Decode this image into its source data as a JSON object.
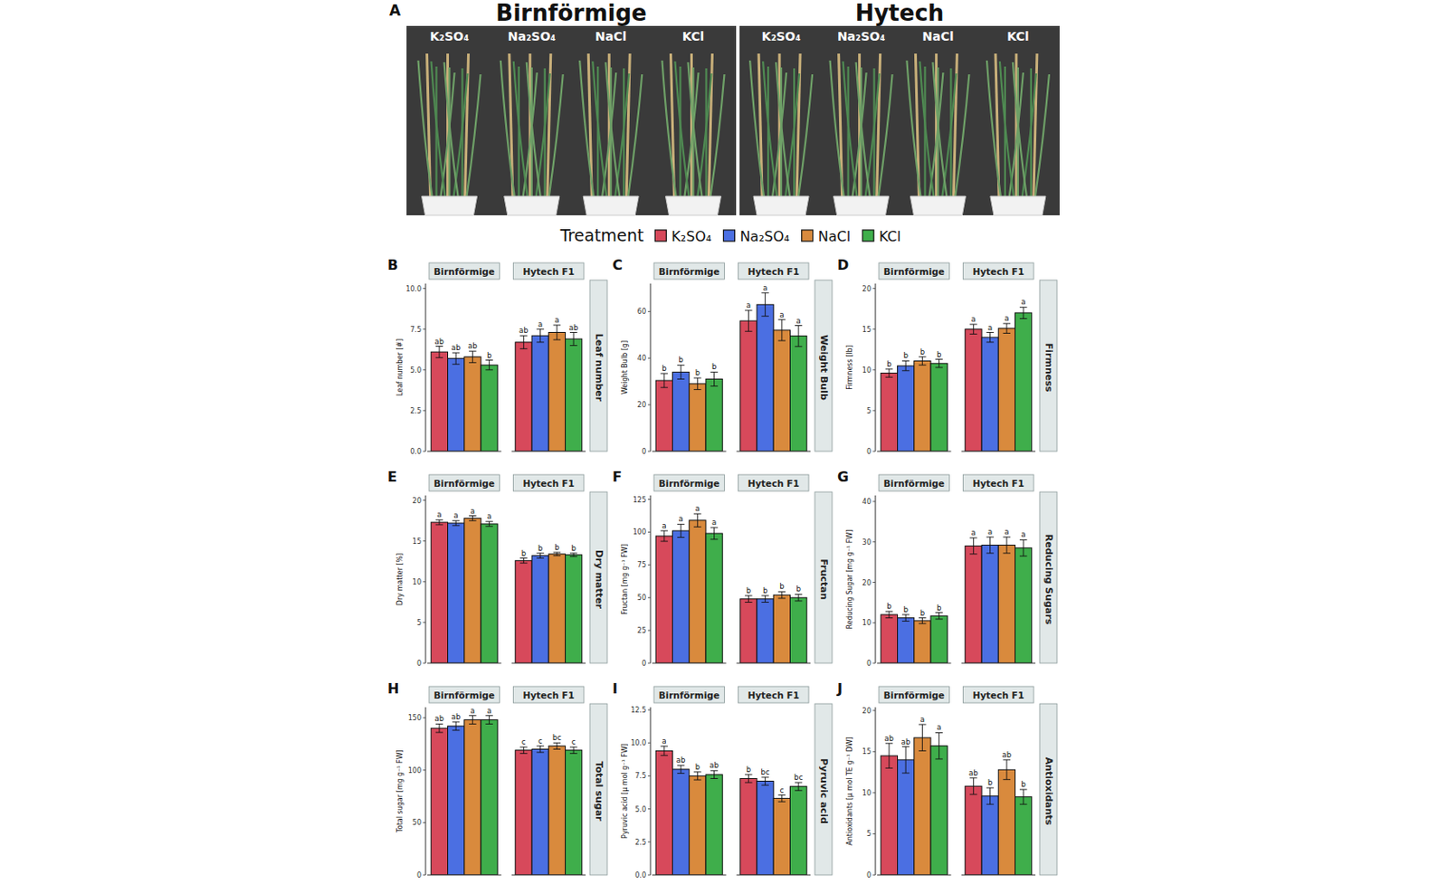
{
  "photo": {
    "label": "A",
    "groups": [
      {
        "title": "Birnförmige",
        "labels": [
          "K₂SO₄",
          "Na₂SO₄",
          "NaCl",
          "KCl"
        ]
      },
      {
        "title": "Hytech",
        "labels": [
          "K₂SO₄",
          "Na₂SO₄",
          "NaCl",
          "KCl"
        ]
      }
    ]
  },
  "treatment_legend": {
    "title": "Treatment",
    "entries": [
      {
        "name": "K₂SO₄",
        "color": "#d7495b"
      },
      {
        "name": "Na₂SO₄",
        "color": "#4b6fe2"
      },
      {
        "name": "NaCl",
        "color": "#d98a3d"
      },
      {
        "name": "KCl",
        "color": "#3fae4b"
      }
    ]
  },
  "chart_data": [
    {
      "type": "bar",
      "panel": "B",
      "title": "Leaf number",
      "y_label": "Leaf number [#]",
      "grid": false,
      "categories": [
        "Birnförmige",
        "Hytech F1"
      ],
      "ylim": [
        0,
        10.3
      ],
      "yticks": [
        {
          "value": 0,
          "label": "0.0"
        },
        {
          "value": 2.5,
          "label": "2.5"
        },
        {
          "value": 5,
          "label": "5.0"
        },
        {
          "value": 7.5,
          "label": "7.5"
        },
        {
          "value": 10,
          "label": "10.0"
        }
      ],
      "series": [
        {
          "values": [
            6.1,
            6.7
          ],
          "errors": [
            0.35,
            0.4
          ],
          "sig_labels": [
            "ab",
            "ab"
          ]
        },
        {
          "values": [
            5.7,
            7.1
          ],
          "errors": [
            0.35,
            0.4
          ],
          "sig_labels": [
            "ab",
            "a"
          ]
        },
        {
          "values": [
            5.8,
            7.3
          ],
          "errors": [
            0.35,
            0.45
          ],
          "sig_labels": [
            "ab",
            "a"
          ]
        },
        {
          "values": [
            5.3,
            6.9
          ],
          "errors": [
            0.3,
            0.4
          ],
          "sig_labels": [
            "b",
            "ab"
          ]
        }
      ]
    },
    {
      "type": "bar",
      "panel": "C",
      "title": "Weight Bulb",
      "y_label": "Weight Bulb [g]",
      "grid": false,
      "categories": [
        "Birnförmige",
        "Hytech F1"
      ],
      "ylim": [
        0,
        72
      ],
      "yticks": [
        0,
        20,
        40,
        60
      ],
      "series": [
        {
          "values": [
            30.4,
            56
          ],
          "errors": [
            3,
            4.5
          ],
          "sig_labels": [
            "b",
            "a"
          ]
        },
        {
          "values": [
            34,
            63
          ],
          "errors": [
            3,
            5
          ],
          "sig_labels": [
            "b",
            "a"
          ]
        },
        {
          "values": [
            29,
            52
          ],
          "errors": [
            2.5,
            4.5
          ],
          "sig_labels": [
            "b",
            "a"
          ]
        },
        {
          "values": [
            31,
            49.5
          ],
          "errors": [
            3,
            4.5
          ],
          "sig_labels": [
            "b",
            "a"
          ]
        }
      ]
    },
    {
      "type": "bar",
      "panel": "D",
      "title": "Firmness",
      "y_label": "Firmness [lb]",
      "grid": false,
      "categories": [
        "Birnförmige",
        "Hytech F1"
      ],
      "ylim": [
        0,
        20.6
      ],
      "yticks": [
        0,
        5,
        10,
        15,
        20
      ],
      "series": [
        {
          "values": [
            9.6,
            15.0
          ],
          "errors": [
            0.5,
            0.6
          ],
          "sig_labels": [
            "b",
            "a"
          ]
        },
        {
          "values": [
            10.5,
            14.0
          ],
          "errors": [
            0.6,
            0.6
          ],
          "sig_labels": [
            "b",
            "a"
          ]
        },
        {
          "values": [
            11.1,
            15.1
          ],
          "errors": [
            0.5,
            0.6
          ],
          "sig_labels": [
            "b",
            "a"
          ]
        },
        {
          "values": [
            10.8,
            17.0
          ],
          "errors": [
            0.5,
            0.7
          ],
          "sig_labels": [
            "b",
            "a"
          ]
        }
      ]
    },
    {
      "type": "bar",
      "panel": "E",
      "title": "Dry matter",
      "y_label": "Dry matter [%]",
      "grid": false,
      "categories": [
        "Birnförmige",
        "Hytech F1"
      ],
      "ylim": [
        0,
        20.6
      ],
      "yticks": [
        0,
        5,
        10,
        15,
        20
      ],
      "series": [
        {
          "values": [
            17.3,
            12.6
          ],
          "errors": [
            0.3,
            0.3
          ],
          "sig_labels": [
            "a",
            "b"
          ]
        },
        {
          "values": [
            17.2,
            13.2
          ],
          "errors": [
            0.3,
            0.3
          ],
          "sig_labels": [
            "a",
            "b"
          ]
        },
        {
          "values": [
            17.8,
            13.4
          ],
          "errors": [
            0.3,
            0.2
          ],
          "sig_labels": [
            "a",
            "b"
          ]
        },
        {
          "values": [
            17.1,
            13.3
          ],
          "errors": [
            0.3,
            0.2
          ],
          "sig_labels": [
            "a",
            "b"
          ]
        }
      ]
    },
    {
      "type": "bar",
      "panel": "F",
      "title": "Fructan",
      "y_label": "Fructan [mg g⁻¹ FW]",
      "grid": false,
      "categories": [
        "Birnförmige",
        "Hytech F1"
      ],
      "ylim": [
        0,
        128
      ],
      "yticks": [
        0,
        25,
        50,
        75,
        100,
        125
      ],
      "series": [
        {
          "values": [
            97,
            49
          ],
          "errors": [
            4,
            2.5
          ],
          "sig_labels": [
            "a",
            "b"
          ]
        },
        {
          "values": [
            101,
            49
          ],
          "errors": [
            5,
            2.5
          ],
          "sig_labels": [
            "a",
            "b"
          ]
        },
        {
          "values": [
            109,
            52
          ],
          "errors": [
            5,
            2.5
          ],
          "sig_labels": [
            "a",
            "b"
          ]
        },
        {
          "values": [
            99,
            50
          ],
          "errors": [
            4.5,
            2.5
          ],
          "sig_labels": [
            "a",
            "b"
          ]
        }
      ]
    },
    {
      "type": "bar",
      "panel": "G",
      "title": "Reducing Sugars",
      "y_label": "Reducing Sugar [mg g⁻¹ FW]",
      "grid": false,
      "categories": [
        "Birnförmige",
        "Hytech F1"
      ],
      "ylim": [
        0,
        41.5
      ],
      "yticks": [
        0,
        10,
        20,
        30,
        40
      ],
      "series": [
        {
          "values": [
            12.0,
            29.0
          ],
          "errors": [
            0.8,
            2
          ],
          "sig_labels": [
            "b",
            "a"
          ]
        },
        {
          "values": [
            11.2,
            29.2
          ],
          "errors": [
            0.8,
            2
          ],
          "sig_labels": [
            "b",
            "a"
          ]
        },
        {
          "values": [
            10.5,
            29.2
          ],
          "errors": [
            0.7,
            2
          ],
          "sig_labels": [
            "b",
            "a"
          ]
        },
        {
          "values": [
            11.7,
            28.5
          ],
          "errors": [
            0.8,
            2
          ],
          "sig_labels": [
            "b",
            "a"
          ]
        }
      ]
    },
    {
      "type": "bar",
      "panel": "H",
      "title": "Total sugar",
      "y_label": "Total sugar [mg g⁻¹ FW]",
      "grid": false,
      "categories": [
        "Birnförmige",
        "Hytech F1"
      ],
      "ylim": [
        0,
        160
      ],
      "yticks": [
        0,
        50,
        100,
        150
      ],
      "series": [
        {
          "values": [
            140,
            119
          ],
          "errors": [
            4,
            3
          ],
          "sig_labels": [
            "ab",
            "c"
          ]
        },
        {
          "values": [
            142,
            120
          ],
          "errors": [
            4,
            3
          ],
          "sig_labels": [
            "ab",
            "c"
          ]
        },
        {
          "values": [
            148,
            123
          ],
          "errors": [
            4,
            3
          ],
          "sig_labels": [
            "a",
            "bc"
          ]
        },
        {
          "values": [
            148,
            119
          ],
          "errors": [
            4,
            3
          ],
          "sig_labels": [
            "a",
            "c"
          ]
        }
      ]
    },
    {
      "type": "bar",
      "panel": "I",
      "title": "Pyruvic acid",
      "y_label": "Pyruvic acid [µ mol g⁻¹ FW]",
      "grid": false,
      "categories": [
        "Birnförmige",
        "Hytech F1"
      ],
      "ylim": [
        0,
        12.7
      ],
      "yticks": [
        {
          "value": 0,
          "label": "0.0"
        },
        {
          "value": 2.5,
          "label": "2.5"
        },
        {
          "value": 5,
          "label": "5.0"
        },
        {
          "value": 7.5,
          "label": "7.5"
        },
        {
          "value": 10,
          "label": "10.0"
        },
        {
          "value": 12.5,
          "label": "12.5"
        }
      ],
      "series": [
        {
          "values": [
            9.4,
            7.3
          ],
          "errors": [
            0.35,
            0.3
          ],
          "sig_labels": [
            "a",
            "b"
          ]
        },
        {
          "values": [
            8.0,
            7.1
          ],
          "errors": [
            0.3,
            0.3
          ],
          "sig_labels": [
            "ab",
            "bc"
          ]
        },
        {
          "values": [
            7.5,
            5.8
          ],
          "errors": [
            0.3,
            0.25
          ],
          "sig_labels": [
            "b",
            "c"
          ]
        },
        {
          "values": [
            7.6,
            6.7
          ],
          "errors": [
            0.3,
            0.3
          ],
          "sig_labels": [
            "ab",
            "bc"
          ]
        }
      ]
    },
    {
      "type": "bar",
      "panel": "J",
      "title": "Antioxidants",
      "y_label": "Antioxidants [µ mol TE g⁻¹ DW]",
      "grid": false,
      "categories": [
        "Birnförmige",
        "Hytech F1"
      ],
      "ylim": [
        0,
        20.4
      ],
      "yticks": [
        0,
        5,
        10,
        15,
        20
      ],
      "series": [
        {
          "values": [
            14.5,
            10.8
          ],
          "errors": [
            1.5,
            1.0
          ],
          "sig_labels": [
            "ab",
            "ab"
          ]
        },
        {
          "values": [
            14.0,
            9.6
          ],
          "errors": [
            1.6,
            1.0
          ],
          "sig_labels": [
            "ab",
            "b"
          ]
        },
        {
          "values": [
            16.7,
            12.8
          ],
          "errors": [
            1.6,
            1.2
          ],
          "sig_labels": [
            "a",
            "ab"
          ]
        },
        {
          "values": [
            15.7,
            9.5
          ],
          "errors": [
            1.6,
            0.9
          ],
          "sig_labels": [
            "a",
            "b"
          ]
        }
      ]
    }
  ]
}
